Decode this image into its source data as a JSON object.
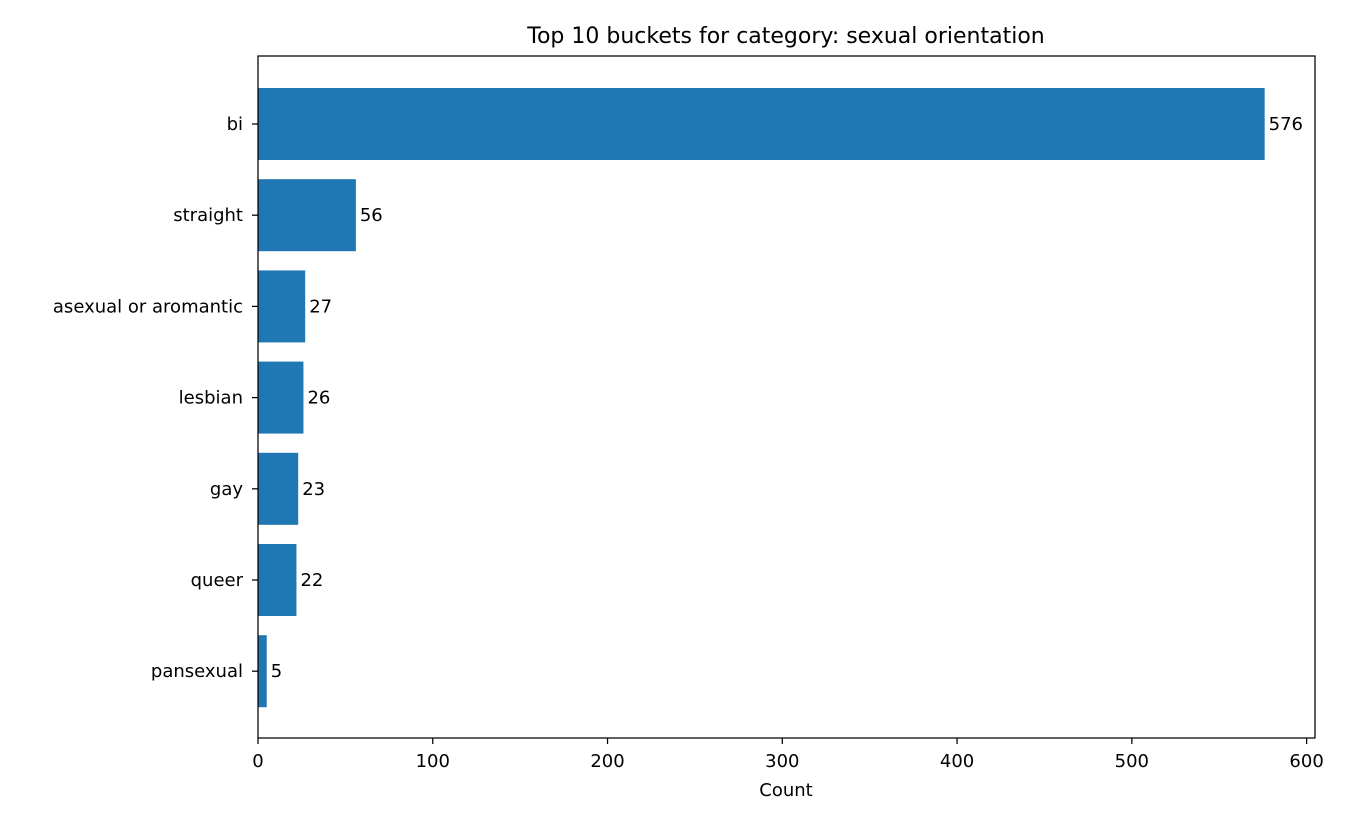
{
  "chart_data": {
    "type": "bar",
    "orientation": "horizontal",
    "title": "Top 10 buckets for category: sexual orientation",
    "xlabel": "Count",
    "ylabel": "",
    "categories": [
      "bi",
      "straight",
      "asexual or aromantic",
      "lesbian",
      "gay",
      "queer",
      "pansexual"
    ],
    "values": [
      576,
      56,
      27,
      26,
      23,
      22,
      5
    ],
    "data_labels": [
      "576",
      "56",
      "27",
      "26",
      "23",
      "22",
      "5"
    ],
    "xlim": [
      0,
      604.8
    ],
    "xticks": [
      0,
      100,
      200,
      300,
      400,
      500,
      600
    ],
    "xtick_labels": [
      "0",
      "100",
      "200",
      "300",
      "400",
      "500",
      "600"
    ],
    "grid": false,
    "legend": "none",
    "bar_color": "#1f77b4"
  }
}
